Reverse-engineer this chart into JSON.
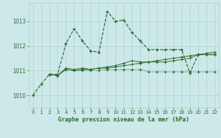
{
  "background_color": "#cce8e8",
  "grid_color": "#aad0d0",
  "line_color": "#2d6a2d",
  "title": "Graphe pression niveau de la mer (hPa)",
  "xlim": [
    -0.5,
    22.5
  ],
  "ylim": [
    1009.5,
    1013.75
  ],
  "yticks": [
    1010,
    1011,
    1012,
    1013
  ],
  "xticks": [
    0,
    1,
    2,
    3,
    4,
    5,
    6,
    7,
    8,
    9,
    10,
    11,
    12,
    13,
    14,
    15,
    16,
    17,
    18,
    19,
    20,
    21,
    22
  ],
  "series1_x": [
    0,
    1,
    2,
    3,
    4,
    5,
    6,
    7,
    8,
    9,
    10,
    11,
    12,
    13,
    14,
    15,
    16,
    17,
    18,
    19,
    20,
    21,
    22
  ],
  "series1_y": [
    1010.0,
    1010.45,
    1010.85,
    1010.85,
    1012.1,
    1012.7,
    1012.2,
    1011.8,
    1011.75,
    1013.4,
    1013.0,
    1013.05,
    1012.55,
    1012.2,
    1011.85,
    1011.85,
    1011.85,
    1011.85,
    1011.85,
    1010.9,
    1011.65,
    1011.65,
    1011.65
  ],
  "series1_style": "--",
  "series2_x": [
    2,
    3,
    4,
    5,
    6,
    7,
    8,
    9,
    10,
    11,
    12,
    13,
    14,
    15,
    16,
    17,
    18,
    19,
    20,
    21,
    22
  ],
  "series2_y": [
    1010.85,
    1010.8,
    1011.05,
    1011.0,
    1011.05,
    1011.05,
    1011.1,
    1011.1,
    1011.15,
    1011.2,
    1011.25,
    1011.3,
    1011.35,
    1011.4,
    1011.45,
    1011.5,
    1011.55,
    1011.6,
    1011.65,
    1011.7,
    1011.75
  ],
  "series2_style": "-",
  "series3_x": [
    2,
    3,
    4,
    5,
    6,
    7,
    8,
    9,
    10,
    11,
    12,
    13,
    14,
    15,
    16,
    17,
    18,
    19,
    20,
    21,
    22
  ],
  "series3_y": [
    1010.85,
    1010.8,
    1011.1,
    1011.05,
    1011.1,
    1011.05,
    1011.1,
    1011.15,
    1011.2,
    1011.3,
    1011.4,
    1011.35,
    1011.35,
    1011.35,
    1011.35,
    1011.4,
    1011.45,
    1011.5,
    1011.65,
    1011.65,
    1011.65
  ],
  "series3_style": "-",
  "series4_x": [
    2,
    3,
    4,
    5,
    6,
    7,
    8,
    9,
    10,
    11,
    12,
    13,
    14,
    15,
    16,
    17,
    18,
    19,
    20,
    21,
    22
  ],
  "series4_y": [
    1010.85,
    1010.8,
    1011.05,
    1011.0,
    1011.0,
    1011.0,
    1011.0,
    1011.05,
    1011.05,
    1011.05,
    1011.05,
    1011.05,
    1010.95,
    1010.95,
    1010.95,
    1010.95,
    1010.95,
    1010.95,
    1010.95,
    1010.95,
    1010.95
  ],
  "series4_style": ":"
}
